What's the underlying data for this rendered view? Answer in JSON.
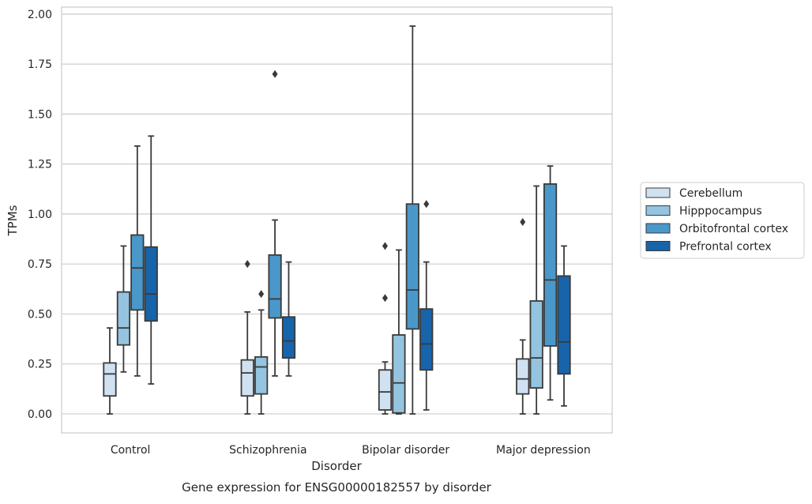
{
  "chart_data": {
    "type": "box",
    "title": "",
    "caption": "Gene expression for ENSG00000182557 by disorder",
    "xlabel": "Disorder",
    "ylabel": "TPMs",
    "ylim": [
      -0.095,
      2.035
    ],
    "y_ticks": [
      0.0,
      0.25,
      0.5,
      0.75,
      1.0,
      1.25,
      1.5,
      1.75,
      2.0
    ],
    "y_tick_labels": [
      "0.00",
      "0.25",
      "0.50",
      "0.75",
      "1.00",
      "1.25",
      "1.50",
      "1.75",
      "2.00"
    ],
    "grid": "horizontal",
    "legend_position": "right",
    "categories": [
      "Control",
      "Schizophrenia",
      "Bipolar disorder",
      "Major depression"
    ],
    "series": [
      {
        "name": "Cerebellum",
        "color": "#d0e1f2",
        "boxes": [
          {
            "min": 0.0,
            "q1": 0.09,
            "median": 0.2,
            "q3": 0.255,
            "max": 0.43,
            "outliers": []
          },
          {
            "min": 0.0,
            "q1": 0.09,
            "median": 0.205,
            "q3": 0.27,
            "max": 0.51,
            "outliers": [
              0.75
            ]
          },
          {
            "min": 0.0,
            "q1": 0.02,
            "median": 0.11,
            "q3": 0.22,
            "max": 0.26,
            "outliers": [
              0.58,
              0.84
            ]
          },
          {
            "min": 0.0,
            "q1": 0.1,
            "median": 0.175,
            "q3": 0.275,
            "max": 0.37,
            "outliers": [
              0.96
            ]
          }
        ]
      },
      {
        "name": "Hipppocampus",
        "color": "#94c4df",
        "boxes": [
          {
            "min": 0.21,
            "q1": 0.345,
            "median": 0.43,
            "q3": 0.61,
            "max": 0.84,
            "outliers": []
          },
          {
            "min": 0.0,
            "q1": 0.1,
            "median": 0.235,
            "q3": 0.285,
            "max": 0.52,
            "outliers": [
              0.6
            ]
          },
          {
            "min": 0.0,
            "q1": 0.005,
            "median": 0.155,
            "q3": 0.395,
            "max": 0.82,
            "outliers": []
          },
          {
            "min": 0.0,
            "q1": 0.13,
            "median": 0.28,
            "q3": 0.565,
            "max": 1.14,
            "outliers": []
          }
        ]
      },
      {
        "name": "Orbitofrontal cortex",
        "color": "#4a98c9",
        "boxes": [
          {
            "min": 0.19,
            "q1": 0.52,
            "median": 0.73,
            "q3": 0.895,
            "max": 1.34,
            "outliers": []
          },
          {
            "min": 0.19,
            "q1": 0.48,
            "median": 0.575,
            "q3": 0.795,
            "max": 0.97,
            "outliers": [
              1.7
            ]
          },
          {
            "min": 0.0,
            "q1": 0.425,
            "median": 0.62,
            "q3": 1.05,
            "max": 1.94,
            "outliers": []
          },
          {
            "min": 0.07,
            "q1": 0.34,
            "median": 0.67,
            "q3": 1.15,
            "max": 1.24,
            "outliers": []
          }
        ]
      },
      {
        "name": "Prefrontal cortex",
        "color": "#1764ab",
        "boxes": [
          {
            "min": 0.15,
            "q1": 0.465,
            "median": 0.6,
            "q3": 0.835,
            "max": 1.39,
            "outliers": []
          },
          {
            "min": 0.19,
            "q1": 0.28,
            "median": 0.365,
            "q3": 0.485,
            "max": 0.76,
            "outliers": []
          },
          {
            "min": 0.02,
            "q1": 0.22,
            "median": 0.35,
            "q3": 0.525,
            "max": 0.76,
            "outliers": [
              1.05
            ]
          },
          {
            "min": 0.04,
            "q1": 0.2,
            "median": 0.36,
            "q3": 0.69,
            "max": 0.84,
            "outliers": []
          }
        ]
      }
    ]
  }
}
